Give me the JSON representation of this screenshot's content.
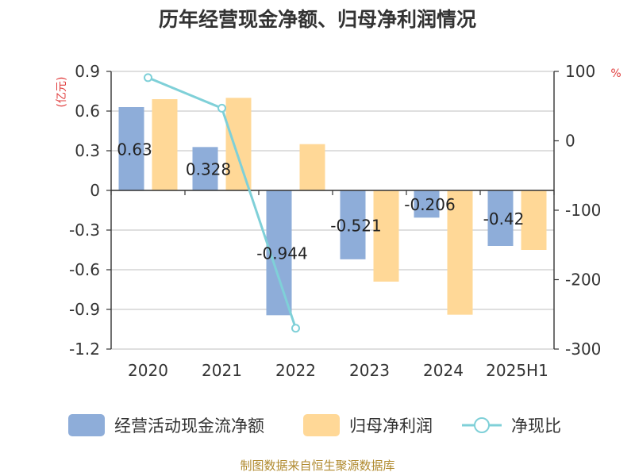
{
  "chart_data": {
    "type": "bar",
    "title": "历年经营现金净额、归母净利润情况",
    "categories": [
      "2020",
      "2021",
      "2022",
      "2023",
      "2024",
      "2025H1"
    ],
    "left_axis": {
      "unit": "(亿元)",
      "ylim": [
        -1.2,
        0.9
      ],
      "ticks": [
        "0.9",
        "0.6",
        "0.3",
        "0",
        "-0.3",
        "-0.6",
        "-0.9",
        "-1.2"
      ],
      "tick_values": [
        0.9,
        0.6,
        0.3,
        0,
        -0.3,
        -0.6,
        -0.9,
        -1.2
      ]
    },
    "right_axis": {
      "unit": "%",
      "ylim": [
        -300,
        100
      ],
      "ticks": [
        "100",
        "0",
        "-100",
        "-200",
        "-300"
      ],
      "tick_values": [
        100,
        0,
        -100,
        -200,
        -300
      ]
    },
    "series": [
      {
        "name": "经营活动现金流净额",
        "type": "bar",
        "axis": "left",
        "color": "#8eadd9",
        "values": [
          0.63,
          0.328,
          -0.944,
          -0.521,
          -0.206,
          -0.42
        ],
        "labels": [
          "0.63",
          "0.328",
          "-0.944",
          "-0.521",
          "-0.206",
          "-0.42"
        ]
      },
      {
        "name": "归母净利润",
        "type": "bar",
        "axis": "left",
        "color": "#ffd897",
        "values": [
          0.69,
          0.7,
          0.35,
          -0.69,
          -0.94,
          -0.45
        ]
      },
      {
        "name": "净现比",
        "type": "line",
        "axis": "right",
        "color": "#7fd0d8",
        "values": [
          91,
          47,
          -270,
          null,
          null,
          null
        ]
      }
    ],
    "grid": true,
    "legend_position": "bottom"
  },
  "source": "制图数据来自恒生聚源数据库"
}
